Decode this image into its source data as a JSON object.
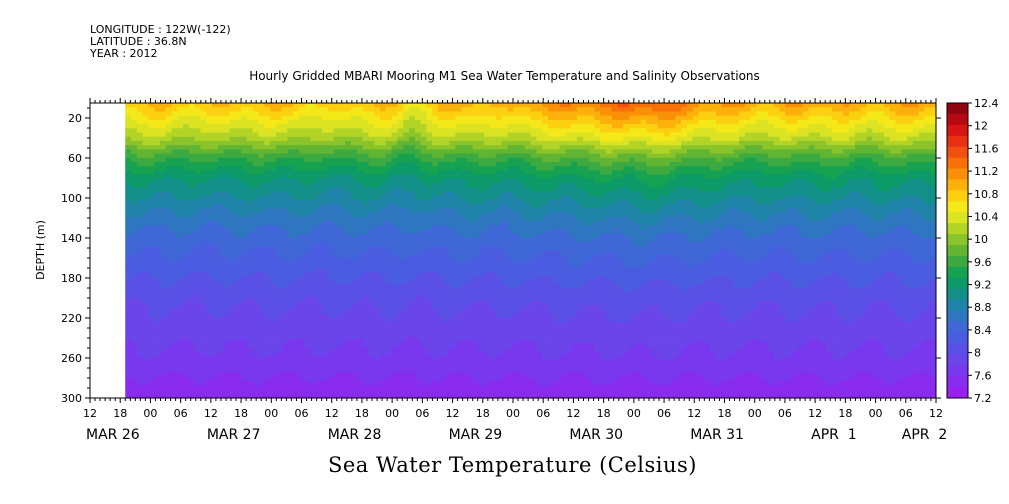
{
  "header": {
    "longitude": "LONGITUDE : 122W(-122)",
    "latitude": "LATITUDE : 36.8N",
    "year": "YEAR : 2012"
  },
  "chart_data": {
    "type": "heatmap",
    "title": "Hourly Gridded MBARI Mooring M1 Sea Water Temperature and Salinity Observations",
    "colorbar_label": "Sea Water Temperature (Celsius)",
    "ylabel": "DEPTH (m)",
    "xlabel": "",
    "y_axis": {
      "range": [
        5,
        300
      ],
      "inverted": true,
      "ticks": [
        20,
        60,
        100,
        140,
        180,
        220,
        260,
        300
      ]
    },
    "x_axis": {
      "units": "hours since MAR 26 12:00",
      "range": [
        0,
        168
      ],
      "hour_labels": [
        "12",
        "18",
        "00",
        "06",
        "12",
        "18",
        "00",
        "06",
        "12",
        "18",
        "00",
        "06",
        "12",
        "18",
        "00",
        "06",
        "12",
        "18",
        "00",
        "06",
        "12",
        "18",
        "00",
        "06",
        "12",
        "18",
        "00",
        "06",
        "12"
      ],
      "date_labels": [
        {
          "label": "MAR 26",
          "hour": 0
        },
        {
          "label": "MAR 27",
          "hour": 24
        },
        {
          "label": "MAR 28",
          "hour": 48
        },
        {
          "label": "MAR 29",
          "hour": 72
        },
        {
          "label": "MAR 30",
          "hour": 96
        },
        {
          "label": "MAR 31",
          "hour": 120
        },
        {
          "label": "APR  1",
          "hour": 144
        },
        {
          "label": "APR  2",
          "hour": 162
        }
      ],
      "data_start_hour": 7
    },
    "colorbar": {
      "levels": [
        7.2,
        7.4,
        7.6,
        7.8,
        8.0,
        8.2,
        8.4,
        8.6,
        8.8,
        9.0,
        9.2,
        9.4,
        9.6,
        9.8,
        10.0,
        10.2,
        10.4,
        10.6,
        10.8,
        11.0,
        11.2,
        11.4,
        11.6,
        11.8,
        12.0,
        12.2,
        12.4
      ],
      "tick_labels": [
        "12.4",
        "12",
        "11.6",
        "11.2",
        "10.8",
        "10.4",
        "10",
        "9.6",
        "9.2",
        "8.8",
        "8.4",
        "8",
        "7.6",
        "7.2"
      ],
      "colors": [
        "#9a1ff0",
        "#8a2bf0",
        "#7a38ee",
        "#6a45ea",
        "#5a50e6",
        "#4a5ce0",
        "#3f67d6",
        "#2e76c0",
        "#1f84a8",
        "#128f88",
        "#0c9a68",
        "#16a250",
        "#3caa40",
        "#62b532",
        "#8ac42a",
        "#b2d426",
        "#dce322",
        "#f4e818",
        "#fcd010",
        "#fcb00c",
        "#fa9008",
        "#f87008",
        "#f25010",
        "#e83014",
        "#d81414",
        "#b80812",
        "#900610"
      ]
    },
    "profile": {
      "depths_m": [
        5,
        20,
        40,
        60,
        80,
        100,
        120,
        140,
        160,
        180,
        200,
        220,
        240,
        260,
        280,
        300
      ],
      "temps_c": [
        10.9,
        10.6,
        10.2,
        9.6,
        9.2,
        8.95,
        8.7,
        8.5,
        8.35,
        8.2,
        8.05,
        7.95,
        7.85,
        7.75,
        7.6,
        7.45
      ]
    },
    "time_series": {
      "hours": [
        7,
        15,
        22,
        28,
        34,
        40,
        46,
        52,
        58,
        64,
        70,
        76,
        82,
        88,
        94,
        100,
        106,
        112,
        118,
        124,
        130,
        136,
        142,
        148,
        154,
        160,
        166
      ],
      "temp_offset_c": [
        0.1,
        0.2,
        0.0,
        0.15,
        0.1,
        0.2,
        -0.1,
        0.1,
        0.2,
        -0.15,
        0.2,
        0.3,
        0.1,
        0.4,
        0.5,
        0.6,
        0.75,
        0.85,
        0.6,
        0.4,
        0.3,
        0.2,
        0.35,
        0.3,
        0.2,
        0.3,
        0.35
      ]
    }
  }
}
